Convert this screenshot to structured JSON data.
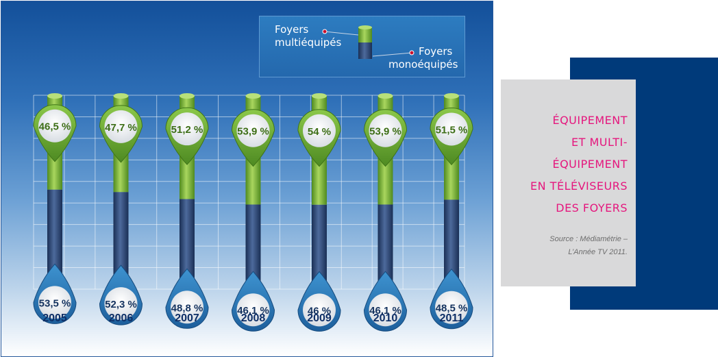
{
  "chart_data": {
    "type": "bar",
    "categories": [
      "2005",
      "2006",
      "2007",
      "2008",
      "2009",
      "2010",
      "2011"
    ],
    "series": [
      {
        "name": "Foyers multiéquipés",
        "values": [
          46.5,
          47.7,
          51.2,
          53.9,
          54,
          53.9,
          51.5
        ],
        "labels": [
          "46,5 %",
          "47,7 %",
          "51,2 %",
          "53,9 %",
          "54 %",
          "53,9 %",
          "51,5 %"
        ],
        "color": "#7db63a"
      },
      {
        "name": "Foyers monoéquipés",
        "values": [
          53.5,
          52.3,
          48.8,
          46.1,
          46,
          46.1,
          48.5
        ],
        "labels": [
          "53,5 %",
          "52,3 %",
          "48,8 %",
          "46,1 %",
          "46 %",
          "46,1 %",
          "48,5 %"
        ],
        "color": "#2c4a7a"
      }
    ],
    "stacked": true,
    "ylim": [
      0,
      100
    ],
    "legend_position": "top-right"
  },
  "legend": {
    "multi_line1": "Foyers",
    "multi_line2": "multiéquipés",
    "mono_line1": "Foyers",
    "mono_line2": "monoéquipés"
  },
  "title_lines": [
    "ÉQUIPEMENT",
    "ET MULTI-",
    "ÉQUIPEMENT",
    "EN TÉLÉVISEURS",
    "DES FOYERS"
  ],
  "source_lines": [
    "Source : Médiamétrie –",
    "L’Année TV 2011."
  ],
  "colors": {
    "green": "#7db63a",
    "navy": "#2c4a7a",
    "pink_title": "#e5167d",
    "year_label": "#0d2e66"
  }
}
